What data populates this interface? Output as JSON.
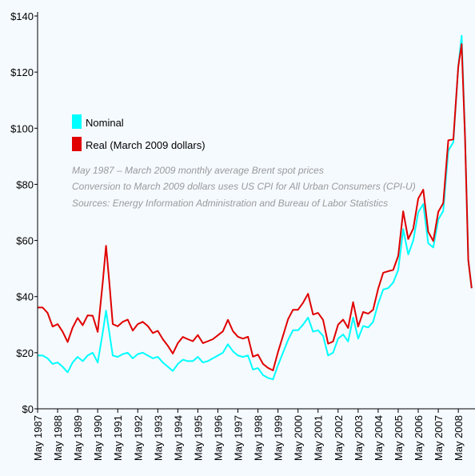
{
  "chart_data": {
    "type": "line",
    "x": [
      "1987-05",
      "1987-08",
      "1987-11",
      "1988-02",
      "1988-05",
      "1988-08",
      "1988-11",
      "1989-02",
      "1989-05",
      "1989-08",
      "1989-11",
      "1990-02",
      "1990-05",
      "1990-08",
      "1990-10",
      "1990-12",
      "1991-02",
      "1991-05",
      "1991-08",
      "1991-11",
      "1992-02",
      "1992-05",
      "1992-08",
      "1992-11",
      "1993-02",
      "1993-05",
      "1993-08",
      "1993-11",
      "1994-02",
      "1994-05",
      "1994-08",
      "1994-11",
      "1995-02",
      "1995-05",
      "1995-08",
      "1995-11",
      "1996-02",
      "1996-05",
      "1996-08",
      "1996-11",
      "1997-02",
      "1997-05",
      "1997-08",
      "1997-11",
      "1998-02",
      "1998-05",
      "1998-08",
      "1998-11",
      "1999-02",
      "1999-05",
      "1999-08",
      "1999-11",
      "2000-02",
      "2000-05",
      "2000-08",
      "2000-11",
      "2001-02",
      "2001-05",
      "2001-08",
      "2001-11",
      "2002-02",
      "2002-05",
      "2002-08",
      "2002-11",
      "2003-02",
      "2003-05",
      "2003-08",
      "2003-11",
      "2004-02",
      "2004-05",
      "2004-08",
      "2004-11",
      "2005-02",
      "2005-05",
      "2005-08",
      "2005-11",
      "2006-02",
      "2006-05",
      "2006-08",
      "2006-11",
      "2007-02",
      "2007-05",
      "2007-08",
      "2007-11",
      "2008-02",
      "2008-05",
      "2008-07",
      "2008-09",
      "2008-11",
      "2009-01"
    ],
    "series": [
      {
        "name": "Nominal",
        "color": "#00ffff",
        "values": [
          19,
          19,
          18,
          16,
          16.5,
          15,
          13,
          16.5,
          18.5,
          17,
          19,
          20,
          16.5,
          27,
          35,
          27,
          19,
          18.5,
          19.5,
          20,
          18,
          19.5,
          20,
          19,
          18,
          18.5,
          16.5,
          15,
          13.5,
          16,
          17.5,
          17,
          17,
          18.5,
          16.5,
          17,
          18,
          19,
          20,
          23,
          20.5,
          19,
          18.5,
          19,
          14,
          14.5,
          12,
          11,
          10.5,
          15.5,
          20,
          24.5,
          28,
          28,
          30,
          32.5,
          27.5,
          28,
          26,
          19,
          20,
          25,
          26.5,
          24,
          32.5,
          25,
          29.5,
          29,
          31,
          37.5,
          42.5,
          43,
          45,
          49.5,
          64,
          55,
          60,
          70,
          73,
          59,
          57.5,
          67.5,
          70.5,
          92,
          95,
          122,
          133,
          98,
          53,
          43
        ]
      },
      {
        "name": "Real (March 2009 dollars)",
        "color": "#e00000",
        "values": [
          36.1,
          36.1,
          34.2,
          29.3,
          30.2,
          27.5,
          23.8,
          28.9,
          32.4,
          29.8,
          33.3,
          33.2,
          27.4,
          44.8,
          58.1,
          44.8,
          30.2,
          29.4,
          31,
          31.8,
          27.9,
          30.2,
          31,
          29.5,
          27,
          27.8,
          24.8,
          22.5,
          19.7,
          23.4,
          25.6,
          24.8,
          24.1,
          26.3,
          23.4,
          24.1,
          24.8,
          26.2,
          27.6,
          31.7,
          27.7,
          25.7,
          25,
          25.7,
          18.6,
          19.3,
          16,
          14.6,
          13.7,
          20.2,
          26,
          31.9,
          35.3,
          35.3,
          37.8,
          41,
          33.6,
          34.2,
          31.7,
          23.2,
          24,
          30,
          31.8,
          28.8,
          38,
          29.3,
          34.5,
          33.9,
          35.3,
          42.8,
          48.5,
          49,
          49.5,
          54.5,
          70.4,
          60.5,
          64.2,
          74.9,
          78.1,
          63.1,
          59.8,
          70.2,
          73.3,
          95.7,
          96,
          122,
          130,
          97,
          53,
          43
        ]
      }
    ],
    "xlim": [
      "1987-05",
      "2009-03"
    ],
    "xticks": [
      {
        "value": "1987-05",
        "label": "May 1987"
      },
      {
        "value": "1988-05",
        "label": "May 1988"
      },
      {
        "value": "1989-05",
        "label": "May 1989"
      },
      {
        "value": "1990-05",
        "label": "May 1990"
      },
      {
        "value": "1991-05",
        "label": "May 1991"
      },
      {
        "value": "1992-05",
        "label": "May 1992"
      },
      {
        "value": "1993-05",
        "label": "May 1993"
      },
      {
        "value": "1994-05",
        "label": "May 1994"
      },
      {
        "value": "1995-05",
        "label": "May 1995"
      },
      {
        "value": "1996-05",
        "label": "May 1996"
      },
      {
        "value": "1997-05",
        "label": "May 1997"
      },
      {
        "value": "1998-05",
        "label": "May 1998"
      },
      {
        "value": "1999-05",
        "label": "May 1999"
      },
      {
        "value": "2000-05",
        "label": "May 2000"
      },
      {
        "value": "2001-05",
        "label": "May 2001"
      },
      {
        "value": "2002-05",
        "label": "May 2002"
      },
      {
        "value": "2003-05",
        "label": "May 2003"
      },
      {
        "value": "2004-05",
        "label": "May 2004"
      },
      {
        "value": "2005-05",
        "label": "May 2005"
      },
      {
        "value": "2006-05",
        "label": "May 2006"
      },
      {
        "value": "2007-05",
        "label": "May 2007"
      },
      {
        "value": "2008-05",
        "label": "May 2008"
      }
    ],
    "ylim": [
      0,
      140
    ],
    "yticks": [
      {
        "value": 0,
        "label": "$0"
      },
      {
        "value": 20,
        "label": "$20"
      },
      {
        "value": 40,
        "label": "$40"
      },
      {
        "value": 60,
        "label": "$60"
      },
      {
        "value": 80,
        "label": "$80"
      },
      {
        "value": 100,
        "label": "$100"
      },
      {
        "value": 120,
        "label": "$120"
      },
      {
        "value": 140,
        "label": "$140"
      }
    ],
    "annotations": [
      "May 1987 – March 2009 monthly average Brent spot prices",
      "Conversion to March 2009 dollars uses US CPI for All Urban Consumers (CPI-U)",
      "Sources: Energy Information Administration and Bureau of Labor Statistics"
    ]
  }
}
